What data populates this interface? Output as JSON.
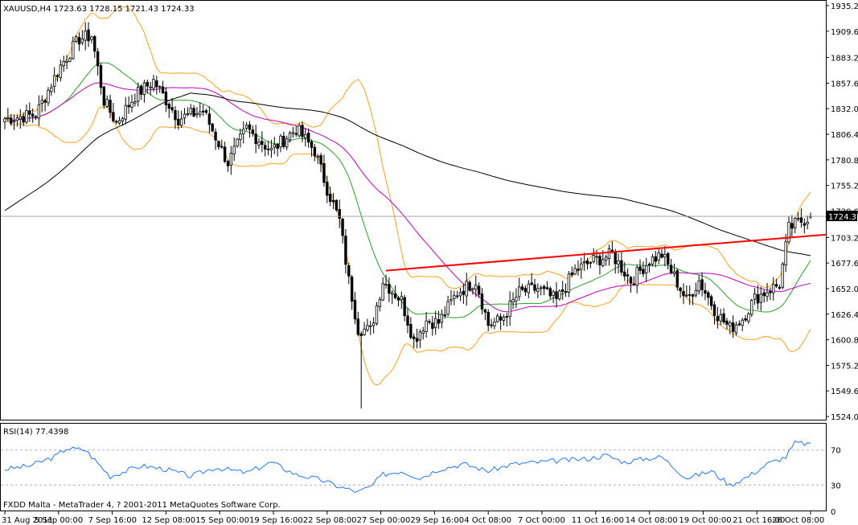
{
  "app": {
    "header_text": "XAUUSD,H4  1723.63 1728.15 1721.43 1724.33",
    "footer_text": "FXDD Malta - MetaTrader 4, ? 2001-2011 MetaQuotes Software Corp.",
    "colors": {
      "background": "#ffffff",
      "axis": "#000000",
      "candle": "#000000",
      "bollinger": "#ff9f1c",
      "ma_green": "#25a525",
      "ma_magenta": "#c000c0",
      "ma_black": "#000000",
      "trendline": "#ff0000",
      "rsi_line": "#1e78ff",
      "rsi_level_lines": "#b0b0b0"
    }
  },
  "chart_data": [
    {
      "type": "candlestick",
      "symbol": "XAUUSD",
      "timeframe": "H4",
      "current_ohlc": {
        "open": 1723.63,
        "high": 1728.15,
        "low": 1721.43,
        "close": 1724.33
      },
      "price_label": "1724.33",
      "ylim": [
        1520.0,
        1940.0
      ],
      "y_ticks": [
        "1935.20",
        "1909.60",
        "1883.20",
        "1857.60",
        "1832.00",
        "1806.40",
        "1780.80",
        "1755.20",
        "1729.60",
        "1703.20",
        "1677.60",
        "1652.00",
        "1626.40",
        "1600.80",
        "1575.20",
        "1549.60",
        "1524.00"
      ],
      "x_ticks": [
        "31 Aug 2011",
        "5 Sep 00:00",
        "7 Sep 16:00",
        "12 Sep 08:00",
        "15 Sep 00:00",
        "19 Sep 16:00",
        "22 Sep 08:00",
        "27 Sep 00:00",
        "29 Sep 16:00",
        "4 Oct 08:00",
        "7 Oct 00:00",
        "11 Oct 16:00",
        "14 Oct 08:00",
        "19 Oct 00:00",
        "21 Oct 16:00",
        "26 Oct 08:00"
      ],
      "price_path_anchors": [
        {
          "bar": 0,
          "close": 1822
        },
        {
          "bar": 10,
          "close": 1826
        },
        {
          "bar": 18,
          "close": 1875
        },
        {
          "bar": 24,
          "close": 1902
        },
        {
          "bar": 28,
          "close": 1905
        },
        {
          "bar": 32,
          "close": 1840
        },
        {
          "bar": 36,
          "close": 1818
        },
        {
          "bar": 42,
          "close": 1845
        },
        {
          "bar": 48,
          "close": 1860
        },
        {
          "bar": 56,
          "close": 1822
        },
        {
          "bar": 64,
          "close": 1830
        },
        {
          "bar": 72,
          "close": 1778
        },
        {
          "bar": 78,
          "close": 1812
        },
        {
          "bar": 86,
          "close": 1790
        },
        {
          "bar": 94,
          "close": 1812
        },
        {
          "bar": 100,
          "close": 1790
        },
        {
          "bar": 104,
          "close": 1752
        },
        {
          "bar": 108,
          "close": 1720
        },
        {
          "bar": 111,
          "close": 1660
        },
        {
          "bar": 114,
          "close": 1612
        },
        {
          "bar": 118,
          "close": 1610
        },
        {
          "bar": 122,
          "close": 1660
        },
        {
          "bar": 128,
          "close": 1640
        },
        {
          "bar": 132,
          "close": 1600
        },
        {
          "bar": 136,
          "close": 1620
        },
        {
          "bar": 140,
          "close": 1618
        },
        {
          "bar": 146,
          "close": 1648
        },
        {
          "bar": 152,
          "close": 1660
        },
        {
          "bar": 156,
          "close": 1616
        },
        {
          "bar": 160,
          "close": 1620
        },
        {
          "bar": 166,
          "close": 1648
        },
        {
          "bar": 172,
          "close": 1652
        },
        {
          "bar": 178,
          "close": 1640
        },
        {
          "bar": 184,
          "close": 1670
        },
        {
          "bar": 190,
          "close": 1680
        },
        {
          "bar": 196,
          "close": 1686
        },
        {
          "bar": 202,
          "close": 1660
        },
        {
          "bar": 208,
          "close": 1680
        },
        {
          "bar": 212,
          "close": 1686
        },
        {
          "bar": 216,
          "close": 1664
        },
        {
          "bar": 220,
          "close": 1640
        },
        {
          "bar": 224,
          "close": 1660
        },
        {
          "bar": 230,
          "close": 1626
        },
        {
          "bar": 234,
          "close": 1612
        },
        {
          "bar": 238,
          "close": 1622
        },
        {
          "bar": 242,
          "close": 1642
        },
        {
          "bar": 246,
          "close": 1650
        },
        {
          "bar": 250,
          "close": 1656
        },
        {
          "bar": 253,
          "close": 1712
        },
        {
          "bar": 256,
          "close": 1718
        },
        {
          "bar": 260,
          "close": 1724
        }
      ],
      "trendline": {
        "from": {
          "bar": 123,
          "price": 1670
        },
        "to": {
          "bar": 275,
          "price": 1706
        }
      },
      "indicators": [
        "Bollinger Bands",
        "Moving Average (green)",
        "Moving Average (magenta)",
        "Moving Average (black)"
      ]
    },
    {
      "type": "line",
      "indicator": "RSI(14)",
      "label": "RSI(14) 77.4398",
      "value": 77.4398,
      "ylim": [
        0,
        100
      ],
      "y_ticks": [
        "70",
        "30",
        "0"
      ],
      "levels": [
        70,
        30
      ],
      "rsi_anchors": [
        {
          "bar": 0,
          "v": 48
        },
        {
          "bar": 8,
          "v": 52
        },
        {
          "bar": 16,
          "v": 62
        },
        {
          "bar": 20,
          "v": 72
        },
        {
          "bar": 26,
          "v": 70
        },
        {
          "bar": 34,
          "v": 40
        },
        {
          "bar": 44,
          "v": 52
        },
        {
          "bar": 52,
          "v": 48
        },
        {
          "bar": 60,
          "v": 40
        },
        {
          "bar": 68,
          "v": 50
        },
        {
          "bar": 78,
          "v": 44
        },
        {
          "bar": 86,
          "v": 56
        },
        {
          "bar": 94,
          "v": 42
        },
        {
          "bar": 102,
          "v": 36
        },
        {
          "bar": 108,
          "v": 28
        },
        {
          "bar": 114,
          "v": 22
        },
        {
          "bar": 118,
          "v": 28
        },
        {
          "bar": 122,
          "v": 42
        },
        {
          "bar": 128,
          "v": 46
        },
        {
          "bar": 134,
          "v": 38
        },
        {
          "bar": 140,
          "v": 48
        },
        {
          "bar": 148,
          "v": 54
        },
        {
          "bar": 156,
          "v": 46
        },
        {
          "bar": 164,
          "v": 54
        },
        {
          "bar": 172,
          "v": 56
        },
        {
          "bar": 180,
          "v": 58
        },
        {
          "bar": 188,
          "v": 60
        },
        {
          "bar": 194,
          "v": 64
        },
        {
          "bar": 200,
          "v": 56
        },
        {
          "bar": 206,
          "v": 60
        },
        {
          "bar": 212,
          "v": 62
        },
        {
          "bar": 220,
          "v": 38
        },
        {
          "bar": 228,
          "v": 46
        },
        {
          "bar": 234,
          "v": 30
        },
        {
          "bar": 240,
          "v": 40
        },
        {
          "bar": 246,
          "v": 54
        },
        {
          "bar": 252,
          "v": 62
        },
        {
          "bar": 255,
          "v": 78
        },
        {
          "bar": 260,
          "v": 77
        }
      ]
    }
  ]
}
